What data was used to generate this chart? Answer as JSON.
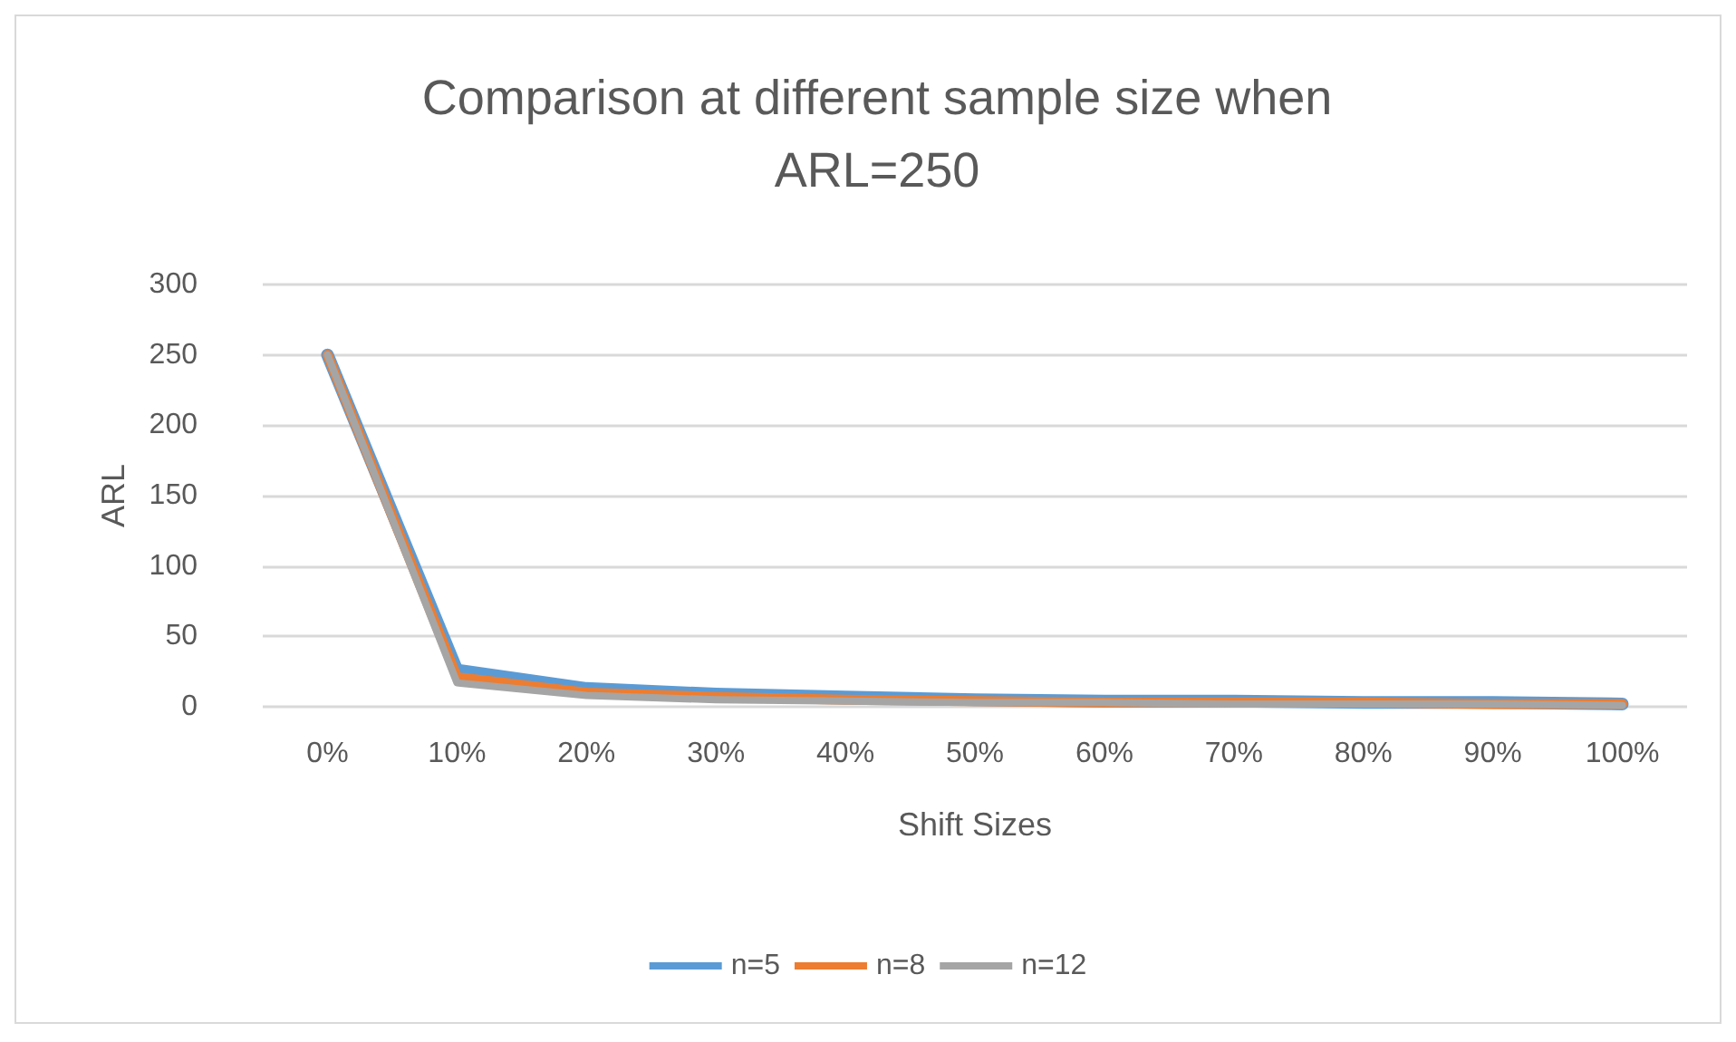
{
  "chart_data": {
    "type": "line",
    "title": "Comparison at different sample size when\nARL=250",
    "xlabel": "Shift Sizes",
    "ylabel": "ARL",
    "categories": [
      "0%",
      "10%",
      "20%",
      "30%",
      "40%",
      "50%",
      "60%",
      "70%",
      "80%",
      "90%",
      "100%"
    ],
    "series": [
      {
        "name": "n=5",
        "color": "#5b9bd5",
        "values": [
          250,
          26,
          13,
          9,
          7,
          5,
          4,
          4,
          3,
          3,
          2
        ]
      },
      {
        "name": "n=8",
        "color": "#ed7d31",
        "values": [
          250,
          21,
          10,
          7,
          5,
          4,
          3,
          3,
          3,
          2,
          2
        ]
      },
      {
        "name": "n=12",
        "color": "#a5a5a5",
        "values": [
          250,
          17,
          8,
          5,
          4,
          3,
          3,
          2,
          2,
          2,
          1
        ]
      }
    ],
    "ylim": [
      0,
      300
    ],
    "yticks": [
      0,
      50,
      100,
      150,
      200,
      250,
      300
    ],
    "grid": "y",
    "legend": "bottom",
    "marker": "none",
    "line_style": "solid"
  }
}
